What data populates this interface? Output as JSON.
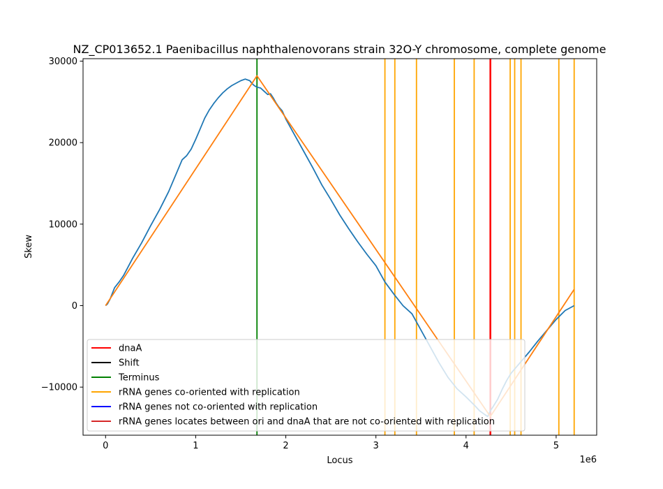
{
  "chart_data": {
    "type": "line",
    "title": "NZ_CP013652.1 Paenibacillus naphthalenovorans strain 32O-Y chromosome, complete genome",
    "xlabel": "Locus",
    "ylabel": "Skew",
    "x_offset_label": "1e6",
    "xlim": [
      -250000,
      5450000
    ],
    "ylim": [
      -15900,
      30300
    ],
    "x_ticks": [
      0,
      1000000,
      2000000,
      3000000,
      4000000,
      5000000
    ],
    "x_tick_labels": [
      "0",
      "1",
      "2",
      "3",
      "4",
      "5"
    ],
    "y_ticks": [
      -10000,
      0,
      10000,
      20000,
      30000
    ],
    "y_tick_labels": [
      "−10000",
      "0",
      "10000",
      "20000",
      "30000"
    ],
    "grid": false,
    "legend_position": "lower-left",
    "colors": {
      "skew": "#1f77b4",
      "fit": "#ff7f0e",
      "dnaA": "#ff0000",
      "shift": "#000000",
      "terminus": "#008000",
      "rrna_co": "#ffa500",
      "rrna_not_co": "#0000ff",
      "rrna_between": "#d62728"
    },
    "legend": [
      {
        "label": "dnaA",
        "color": "#ff0000"
      },
      {
        "label": "Shift",
        "color": "#000000"
      },
      {
        "label": "Terminus",
        "color": "#008000"
      },
      {
        "label": "rRNA genes co-oriented with replication",
        "color": "#ffa500"
      },
      {
        "label": "rRNA genes not co-oriented with replication",
        "color": "#0000ff"
      },
      {
        "label": "rRNA genes locates between ori and dnaA that are not co-oriented with replication",
        "color": "#d62728"
      }
    ],
    "series": [
      {
        "type": "line",
        "x": [
          0,
          20000,
          50000,
          100000,
          150000,
          200000,
          300000,
          400000,
          500000,
          600000,
          700000,
          800000,
          850000,
          900000,
          950000,
          1000000,
          1050000,
          1100000,
          1150000,
          1200000,
          1250000,
          1300000,
          1350000,
          1400000,
          1450000,
          1500000,
          1550000,
          1600000,
          1630000,
          1650000,
          1680000,
          1720000,
          1760000,
          1800000,
          1830000,
          1860000,
          1890000,
          1920000,
          1960000,
          2000000,
          2100000,
          2200000,
          2300000,
          2400000,
          2500000,
          2600000,
          2700000,
          2800000,
          2900000,
          3000000,
          3100000,
          3200000,
          3300000,
          3400000,
          3500000,
          3600000,
          3700000,
          3800000,
          3900000,
          4000000,
          4100000,
          4150000,
          4200000,
          4240000,
          4270000,
          4300000,
          4350000,
          4400000,
          4450000,
          4500000,
          4600000,
          4700000,
          4800000,
          4900000,
          5000000,
          5100000,
          5150000,
          5200000
        ],
        "y": [
          0,
          200,
          800,
          2200,
          2900,
          3700,
          5800,
          7700,
          9800,
          11800,
          14000,
          16600,
          17900,
          18400,
          19200,
          20400,
          21700,
          23000,
          24000,
          24800,
          25500,
          26100,
          26600,
          27000,
          27300,
          27600,
          27800,
          27600,
          27200,
          27000,
          26800,
          26700,
          26300,
          25900,
          26000,
          25500,
          24900,
          24400,
          23900,
          22900,
          20900,
          18900,
          16900,
          14800,
          13000,
          11100,
          9400,
          7800,
          6300,
          4900,
          2900,
          1400,
          0,
          -1000,
          -3000,
          -5000,
          -7000,
          -8800,
          -10200,
          -11200,
          -12300,
          -12900,
          -13300,
          -13600,
          -12900,
          -12400,
          -11500,
          -10300,
          -9200,
          -8300,
          -7000,
          -5700,
          -4300,
          -3000,
          -1700,
          -600,
          -300,
          0
        ],
        "color": "#1f77b4"
      },
      {
        "type": "line",
        "x": [
          0,
          1680000,
          4270000,
          5200000
        ],
        "y": [
          0,
          28200,
          -13600,
          2000
        ],
        "color": "#ff7f0e"
      }
    ],
    "vertical_lines": {
      "dnaA": [
        4270000
      ],
      "terminus": [
        1680000
      ],
      "rrna_co": [
        3100000,
        3210000,
        3450000,
        3870000,
        4090000,
        4490000,
        4540000,
        4610000,
        5030000,
        5200000
      ]
    }
  }
}
